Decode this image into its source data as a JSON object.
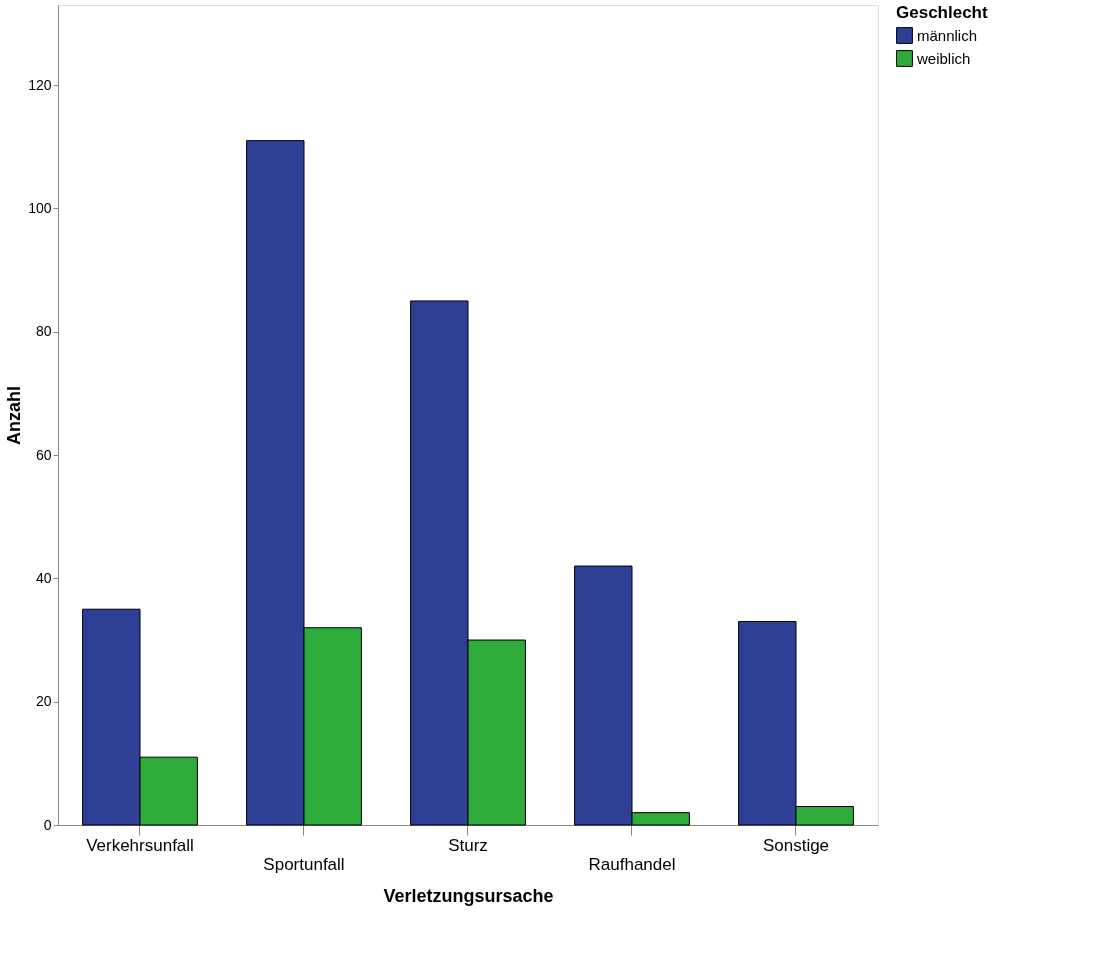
{
  "chart_data": {
    "type": "bar",
    "xlabel": "Verletzungsursache",
    "ylabel": "Anzahl",
    "legend_title": "Geschlecht",
    "categories": [
      "Verkehrsunfall",
      "Sportunfall",
      "Sturz",
      "Raufhandel",
      "Sonstige"
    ],
    "series": [
      {
        "name": "männlich",
        "color": "#2e3f96",
        "values": [
          35,
          111,
          85,
          42,
          33
        ]
      },
      {
        "name": "weiblich",
        "color": "#2eab3a",
        "values": [
          11,
          32,
          30,
          2,
          3
        ]
      }
    ],
    "ylim": [
      0,
      133
    ],
    "yticks": [
      0,
      20,
      40,
      60,
      80,
      100,
      120
    ],
    "grid": false,
    "legend": "top right"
  }
}
